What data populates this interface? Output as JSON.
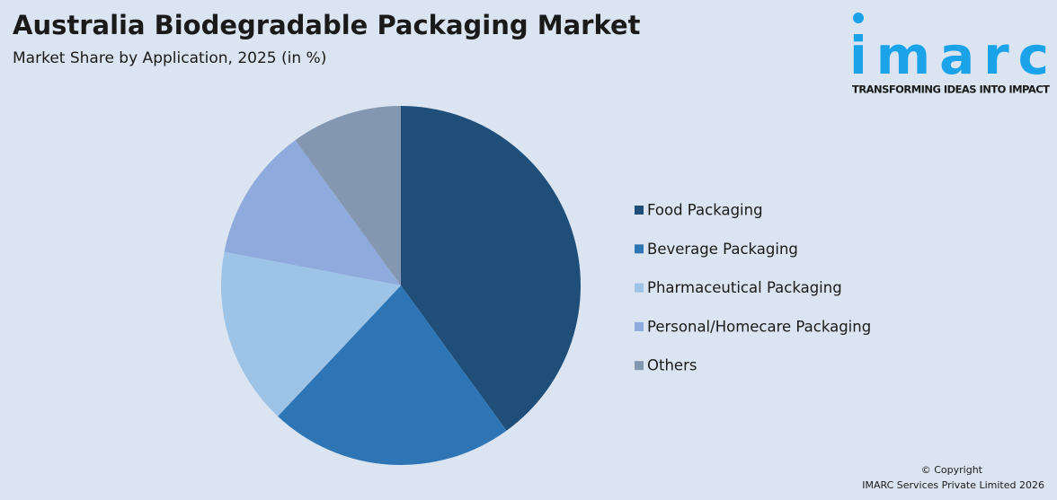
{
  "chart_data": {
    "type": "pie",
    "title": "Australia Biodegradable Packaging Market",
    "subtitle": "Market Share by Application, 2025 (in %)",
    "categories": [
      "Food Packaging",
      "Beverage Packaging",
      "Pharmaceutical Packaging",
      "Personal/Homecare Packaging",
      "Others"
    ],
    "values": [
      40,
      22,
      16,
      12,
      10
    ],
    "colors": [
      "#1f4e79",
      "#2e75b6",
      "#9dc3e6",
      "#8faadc",
      "#8497b0"
    ],
    "legend": "right"
  },
  "branding": {
    "logo": "imarc",
    "tagline": "TRANSFORMING IDEAS INTO IMPACT",
    "copyright": [
      "© Copyright",
      "IMARC Services Private Limited 2026"
    ]
  }
}
